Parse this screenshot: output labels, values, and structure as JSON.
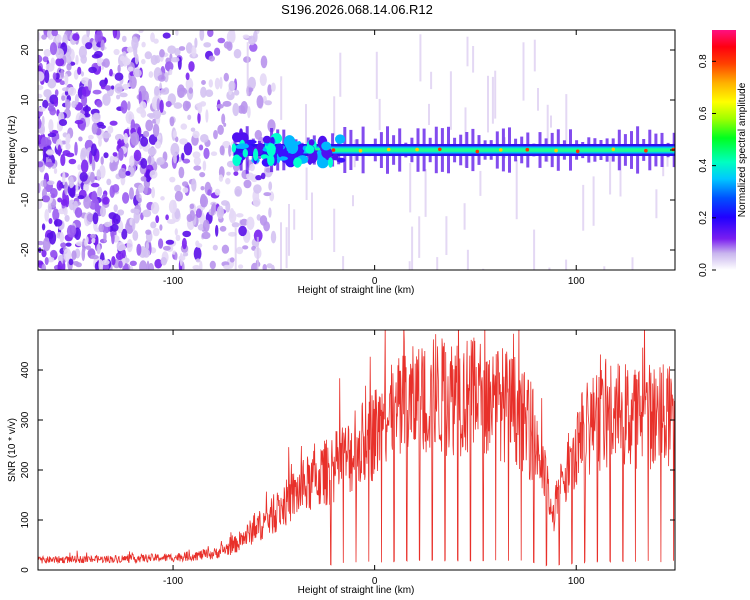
{
  "title": "S196.2026.068.14.06.R12",
  "chart_data": [
    {
      "type": "heatmap",
      "xlabel": "Height of straight line (km)",
      "ylabel": "Frequency (Hz)",
      "xlim": [
        -167,
        149
      ],
      "ylim": [
        -24,
        24
      ],
      "xticks": [
        -100,
        0,
        100
      ],
      "yticks": [
        -20,
        -10,
        0,
        10,
        20
      ],
      "colorbar": {
        "label": "Normalized spectral amplitude",
        "range": [
          0,
          0.92
        ],
        "ticks": [
          0.0,
          0.2,
          0.4,
          0.6,
          0.8
        ],
        "colors": [
          "#ffffff",
          "#d8c8f0",
          "#8a2be2",
          "#5a00ff",
          "#0000ff",
          "#00bfff",
          "#00ffff",
          "#00ff7f",
          "#00ff00",
          "#adff2f",
          "#ffff00",
          "#ffa500",
          "#ff4500",
          "#ff0000",
          "#ff1493"
        ]
      },
      "description_points": {
        "noise_region_end_km": -70,
        "tone_frequency_hz": 0,
        "tone_start_km": -70
      }
    },
    {
      "type": "line",
      "xlabel": "Height of straight line (km)",
      "ylabel": "SNR (10 * v/v)",
      "xlim": [
        -167,
        149
      ],
      "ylim": [
        0,
        480
      ],
      "xticks": [
        -100,
        0,
        100
      ],
      "yticks": [
        0,
        100,
        200,
        300,
        400
      ],
      "color": "#e8302a",
      "envelope": {
        "x": [
          -167,
          -130,
          -100,
          -80,
          -70,
          -60,
          -50,
          -40,
          -30,
          -20,
          -10,
          0,
          10,
          20,
          30,
          40,
          50,
          60,
          70,
          80,
          85,
          88,
          92,
          100,
          110,
          120,
          130,
          149
        ],
        "y": [
          20,
          22,
          25,
          32,
          48,
          80,
          110,
          150,
          180,
          205,
          235,
          275,
          310,
          335,
          345,
          350,
          345,
          340,
          320,
          260,
          170,
          100,
          160,
          255,
          300,
          310,
          310,
          305
        ]
      },
      "dropout_period_km": 6.3,
      "dropout_start_km": -22
    }
  ]
}
